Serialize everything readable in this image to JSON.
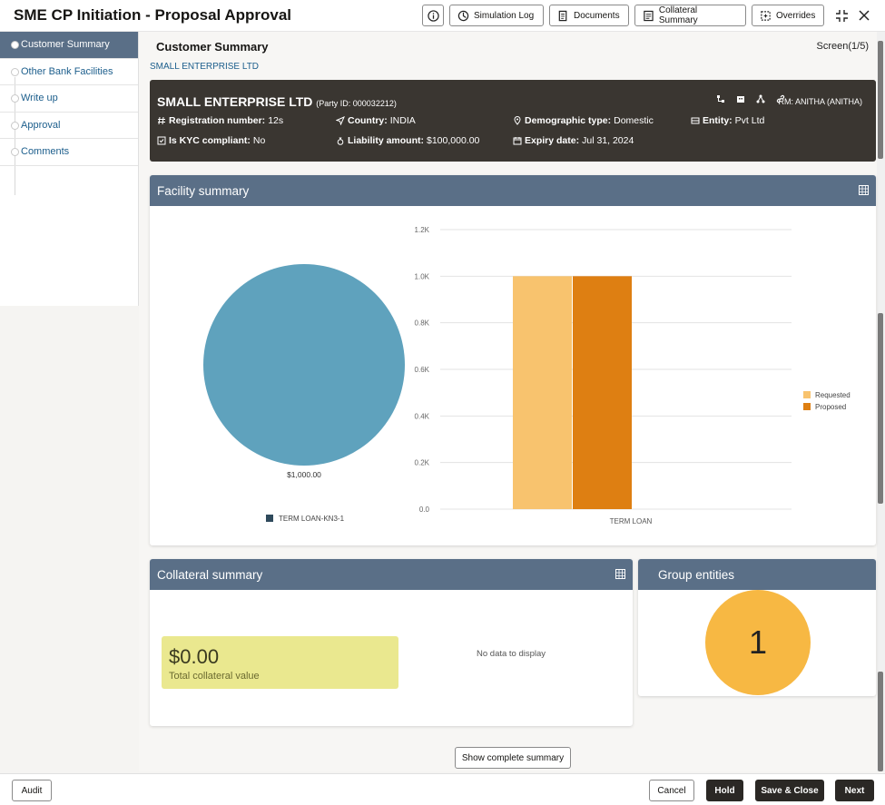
{
  "header": {
    "title": "SME CP Initiation - Proposal Approval",
    "buttons": {
      "simulation_log": "Simulation Log",
      "documents": "Documents",
      "collateral_summary": "Collateral Summary",
      "overrides": "Overrides"
    }
  },
  "sidebar": {
    "items": [
      {
        "label": "Customer Summary"
      },
      {
        "label": "Other Bank Facilities"
      },
      {
        "label": "Write up"
      },
      {
        "label": "Approval"
      },
      {
        "label": "Comments"
      }
    ]
  },
  "main": {
    "page_title": "Customer Summary",
    "screen": "Screen(1/5)",
    "breadcrumb": "SMALL ENTERPRISE LTD"
  },
  "party": {
    "name": "SMALL ENTERPRISE LTD",
    "party_id": "(Party ID: 000032212)",
    "rm": "RM: ANITHA (ANITHA)",
    "registration_label": "Registration number:",
    "registration_value": "12s",
    "country_label": "Country:",
    "country_value": " INDIA",
    "demographic_label": "Demographic type:",
    "demographic_value": "Domestic",
    "entity_label": "Entity:",
    "entity_value": "Pvt Ltd",
    "kyc_label": "Is KYC compliant:",
    "kyc_value": "No",
    "liability_label": "Liability amount:",
    "liability_value": "$100,000.00",
    "expiry_label": "Expiry date:",
    "expiry_value": "Jul 31, 2024"
  },
  "facility": {
    "title": "Facility summary",
    "pie_label": "$1,000.00",
    "pie_legend": "TERM LOAN-KN3-1",
    "bar_legend": [
      "Requested",
      "Proposed"
    ]
  },
  "colors": {
    "pie": "#5fa2bd",
    "requested": "#f8c36e",
    "proposed": "#de7f12",
    "header_band": "#5a6f87"
  },
  "chart_data": [
    {
      "type": "pie",
      "categories": [
        "TERM LOAN-KN3-1"
      ],
      "values": [
        1000
      ],
      "data_labels": [
        "$1,000.00"
      ]
    },
    {
      "type": "bar",
      "categories": [
        "TERM LOAN"
      ],
      "series": [
        {
          "name": "Requested",
          "values": [
            1000
          ]
        },
        {
          "name": "Proposed",
          "values": [
            1000
          ]
        }
      ],
      "yticks": [
        "0.0",
        "0.2K",
        "0.4K",
        "0.6K",
        "0.8K",
        "1.0K",
        "1.2K"
      ],
      "ylim": [
        0,
        1200
      ],
      "grid": true,
      "legend_position": "right"
    }
  ],
  "collateral": {
    "title": "Collateral summary",
    "value": "$0.00",
    "value_label": "Total collateral value",
    "no_data": "No data to display"
  },
  "group": {
    "title": "Group entities",
    "count": "1"
  },
  "buttons": {
    "show_summary": "Show complete summary",
    "audit": "Audit",
    "cancel": "Cancel",
    "hold": "Hold",
    "save_close": "Save & Close",
    "next": "Next"
  }
}
